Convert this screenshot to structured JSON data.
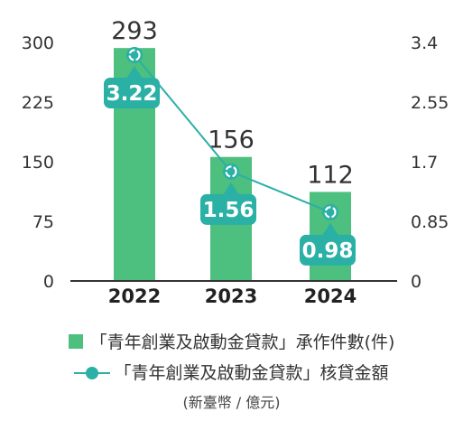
{
  "chart_data": {
    "type": "bar",
    "categories": [
      "2022",
      "2023",
      "2024"
    ],
    "series": [
      {
        "name": "「青年創業及啟動金貸款」承作件數",
        "name_suffix": "(件)",
        "type": "bar",
        "axis": "left",
        "values": [
          293,
          156,
          112
        ],
        "value_labels": [
          "293",
          "156",
          "112"
        ],
        "color": "#4dbf7f"
      },
      {
        "name": "「青年創業及啟動金貸款」核貸金額",
        "type": "line",
        "axis": "right",
        "values": [
          3.22,
          1.56,
          0.98
        ],
        "value_labels": [
          "3.22",
          "1.56",
          "0.98"
        ],
        "color": "#2ab0a5"
      }
    ],
    "left_axis": {
      "ticks": [
        "0",
        "75",
        "150",
        "225",
        "300"
      ],
      "range": [
        0,
        300
      ]
    },
    "right_axis": {
      "ticks": [
        "0",
        "0.85",
        "1.7",
        "2.55",
        "3.4"
      ],
      "range": [
        0,
        3.4
      ]
    },
    "grid": false,
    "legend_position": "bottom",
    "unit_note": "(新臺幣 / 億元)"
  }
}
